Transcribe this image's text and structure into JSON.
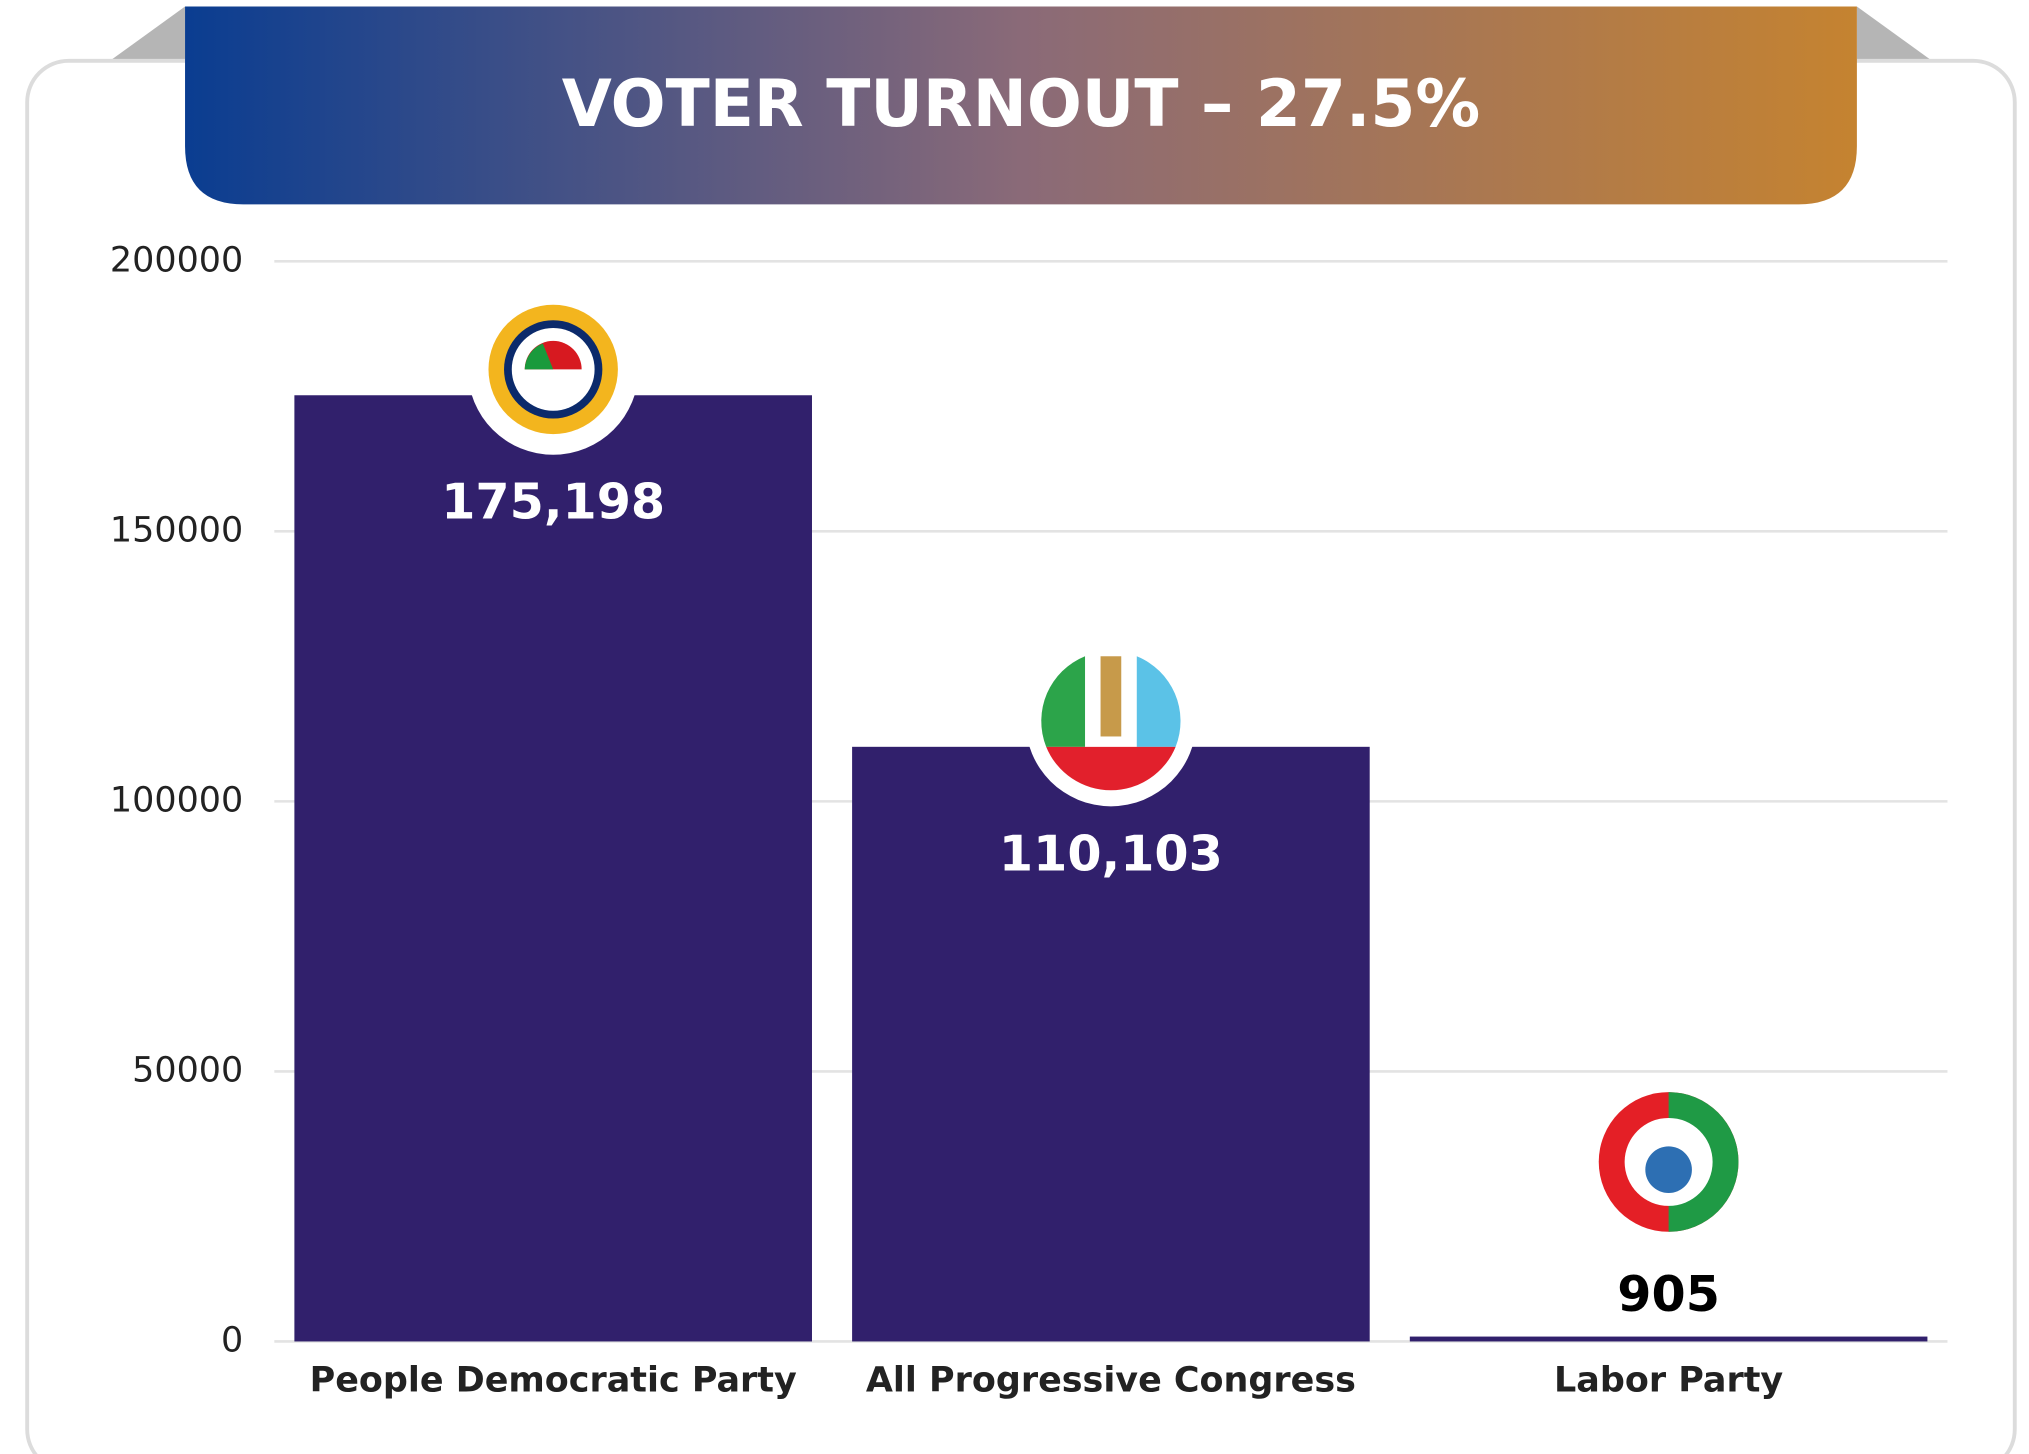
{
  "chart_data": {
    "type": "bar",
    "title": "VOTER TURNOUT – 27.5%",
    "categories": [
      "People Democratic Party",
      "All Progressive Congress",
      "Labor Party"
    ],
    "values": [
      175198,
      110103,
      905
    ],
    "value_labels": [
      "175,198",
      "110,103",
      "905"
    ],
    "color": "#31206c",
    "ylim": [
      0,
      200000
    ],
    "yticks": [
      0,
      50000,
      100000,
      150000,
      200000
    ],
    "grid": true
  }
}
